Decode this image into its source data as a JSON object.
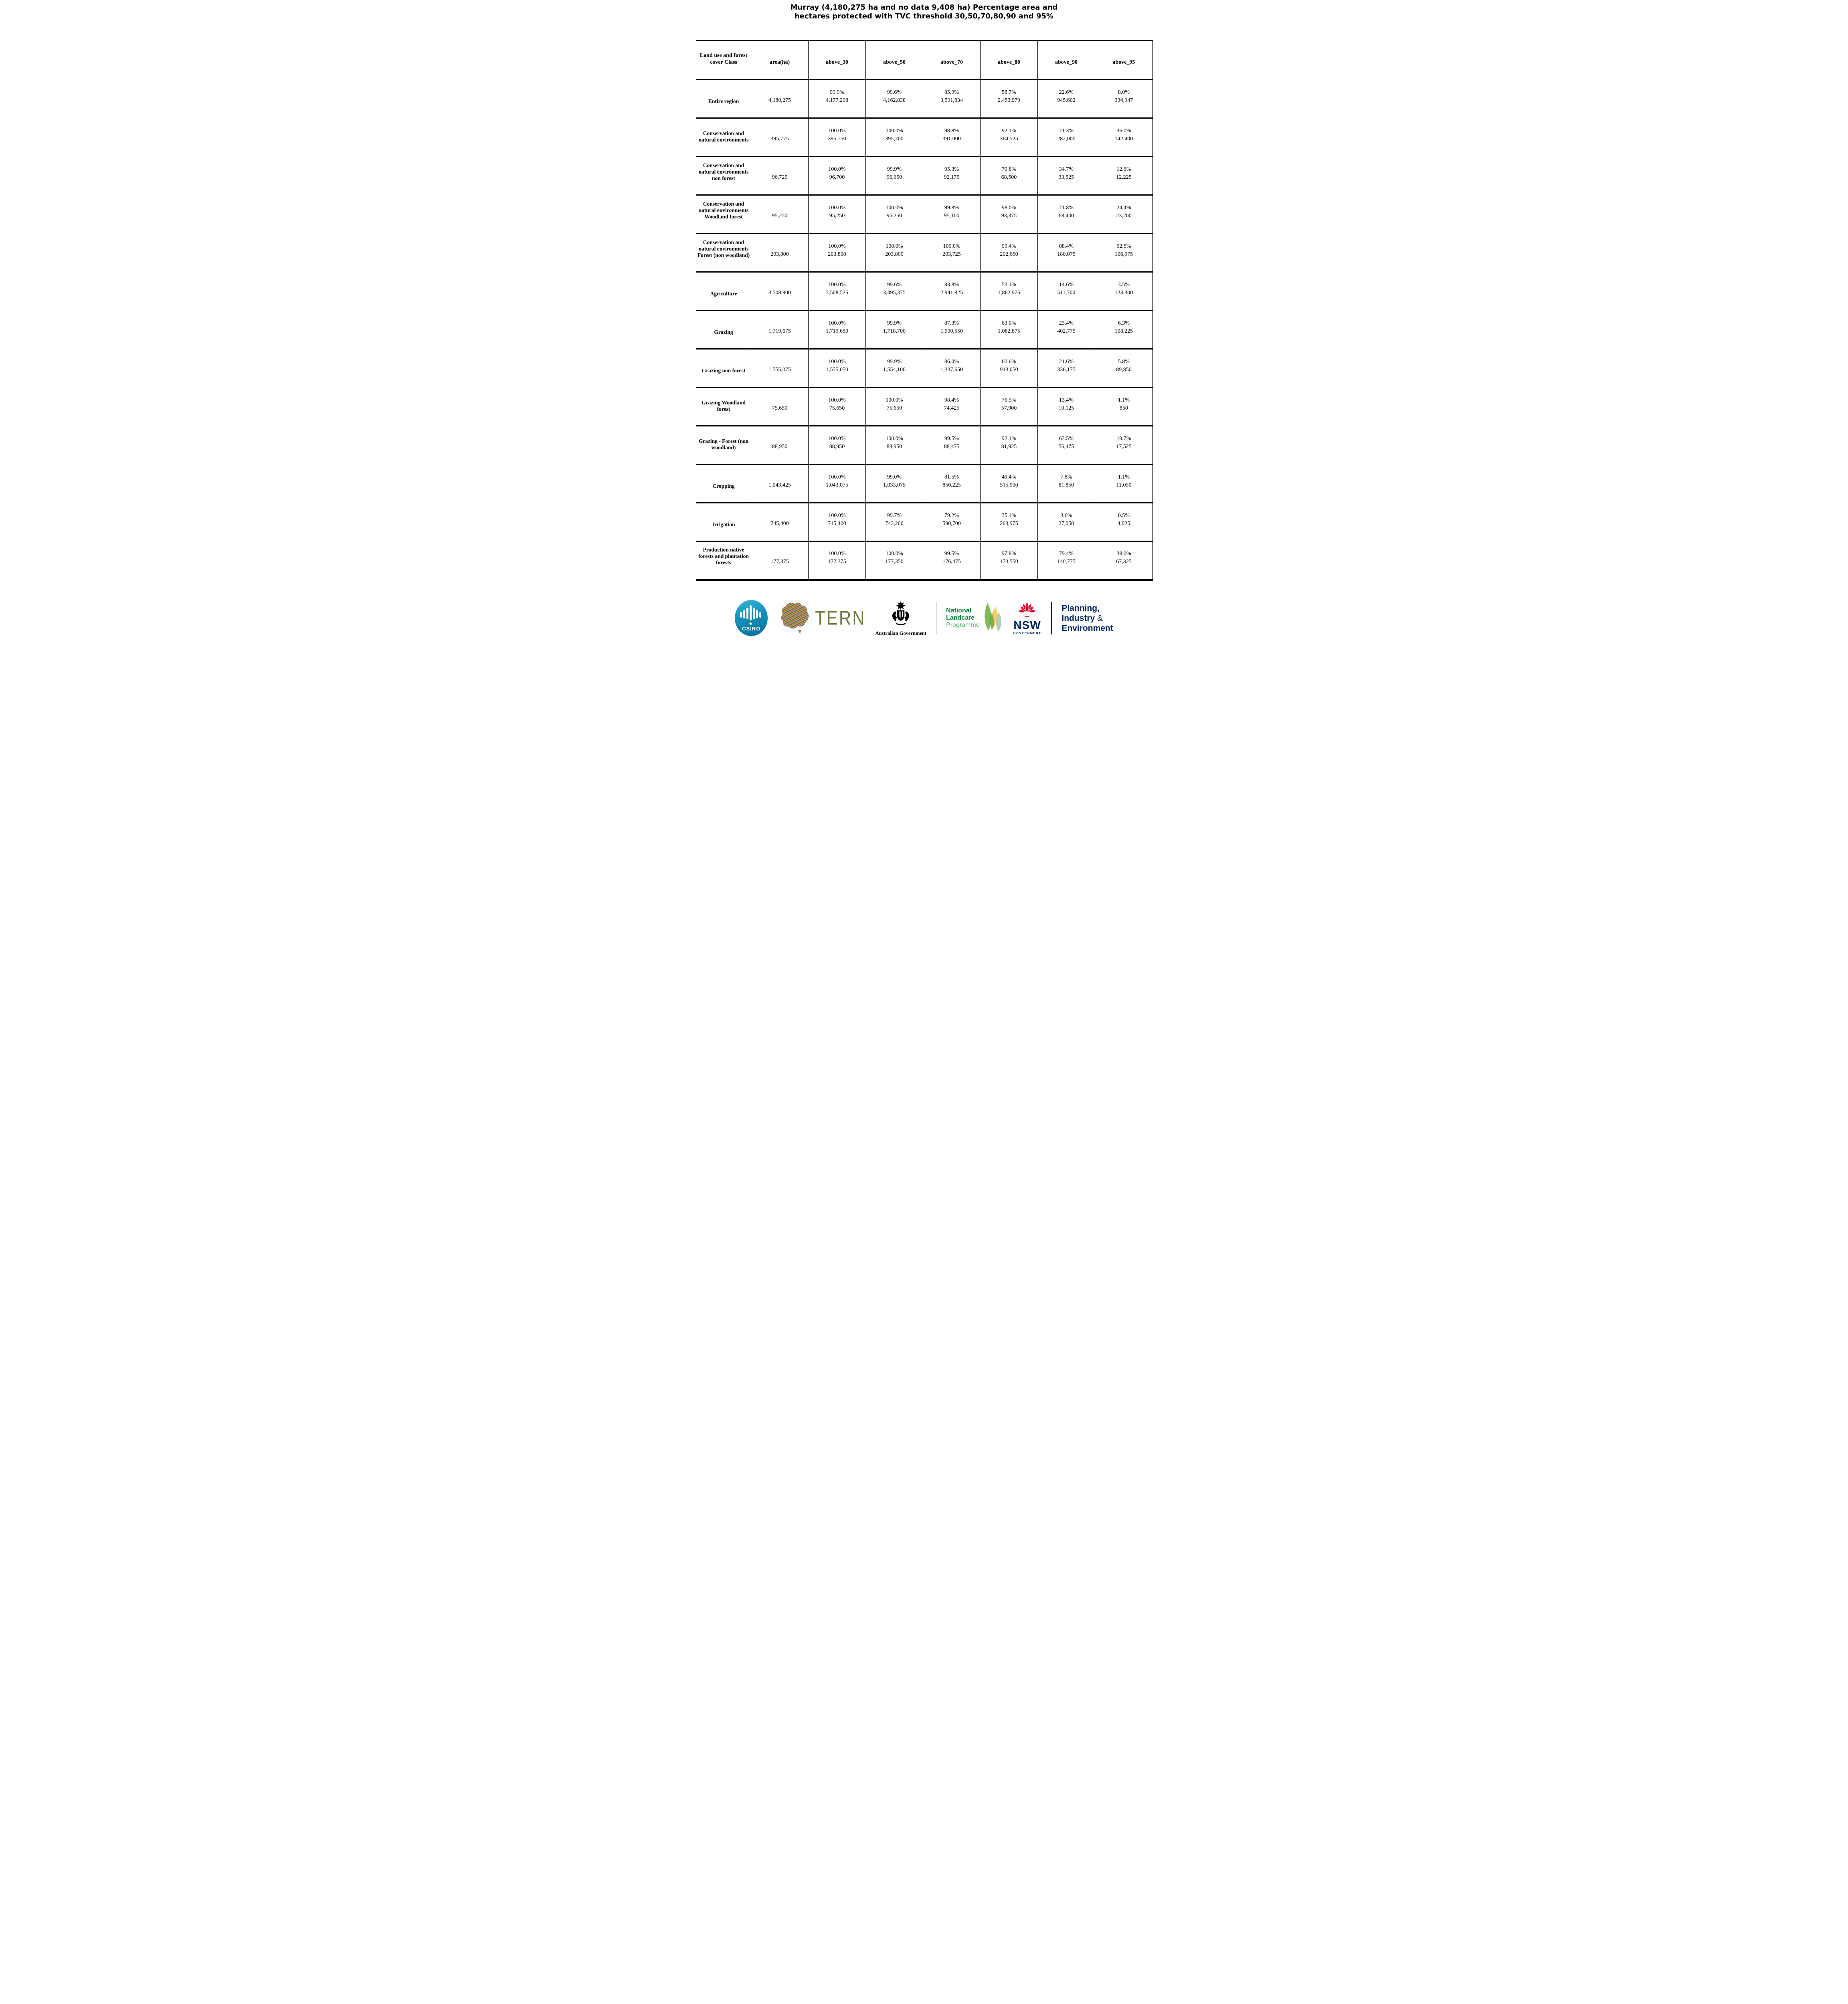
{
  "title": {
    "line1": "Murray (4,180,275 ha and no data 9,408 ha) Percentage area and",
    "line2": "hectares protected with TVC threshold 30,50,70,80,90 and 95%"
  },
  "table": {
    "header": [
      "Land use and forest cover Class",
      "area(ha)",
      "above_30",
      "above_50",
      "above_70",
      "above_80",
      "above_90",
      "above_95"
    ],
    "rows": [
      {
        "label": "Entire region",
        "area": "4,180,275",
        "values": [
          [
            "99.9%",
            "4,177,298"
          ],
          [
            "99.6%",
            "4,162,838"
          ],
          [
            "85.9%",
            "3,591,834"
          ],
          [
            "58.7%",
            "2,453,979"
          ],
          [
            "22.6%",
            "945,602"
          ],
          [
            "8.0%",
            "334,947"
          ]
        ]
      },
      {
        "label": "Conservation and natural environments",
        "area": "395,775",
        "values": [
          [
            "100.0%",
            "395,750"
          ],
          [
            "100.0%",
            "395,700"
          ],
          [
            "98.8%",
            "391,000"
          ],
          [
            "92.1%",
            "364,525"
          ],
          [
            "71.3%",
            "282,000"
          ],
          [
            "36.0%",
            "142,400"
          ]
        ]
      },
      {
        "label": "Conservation and natural environments non forest",
        "area": "96,725",
        "values": [
          [
            "100.0%",
            "96,700"
          ],
          [
            "99.9%",
            "96,650"
          ],
          [
            "95.3%",
            "92,175"
          ],
          [
            "70.8%",
            "68,500"
          ],
          [
            "34.7%",
            "33,525"
          ],
          [
            "12.6%",
            "12,225"
          ]
        ]
      },
      {
        "label": "Conservation and natural environments Woodland forest",
        "area": "95,250",
        "values": [
          [
            "100.0%",
            "95,250"
          ],
          [
            "100.0%",
            "95,250"
          ],
          [
            "99.8%",
            "95,100"
          ],
          [
            "98.0%",
            "93,375"
          ],
          [
            "71.8%",
            "68,400"
          ],
          [
            "24.4%",
            "23,200"
          ]
        ]
      },
      {
        "label": "Conservation and natural environments Forest (non woodland)",
        "area": "203,800",
        "values": [
          [
            "100.0%",
            "203,800"
          ],
          [
            "100.0%",
            "203,800"
          ],
          [
            "100.0%",
            "203,725"
          ],
          [
            "99.4%",
            "202,650"
          ],
          [
            "88.4%",
            "180,075"
          ],
          [
            "52.5%",
            "106,975"
          ]
        ]
      },
      {
        "label": "Agriculture",
        "area": "3,508,900",
        "values": [
          [
            "100.0%",
            "3,508,525"
          ],
          [
            "99.6%",
            "3,495,375"
          ],
          [
            "83.8%",
            "2,941,825"
          ],
          [
            "53.1%",
            "1,862,975"
          ],
          [
            "14.6%",
            "511,700"
          ],
          [
            "3.5%",
            "123,300"
          ]
        ]
      },
      {
        "label": "Grazing",
        "area": "1,719,675",
        "values": [
          [
            "100.0%",
            "1,719,650"
          ],
          [
            "99.9%",
            "1,718,700"
          ],
          [
            "87.3%",
            "1,500,550"
          ],
          [
            "63.0%",
            "1,082,875"
          ],
          [
            "23.4%",
            "402,775"
          ],
          [
            "6.3%",
            "108,225"
          ]
        ]
      },
      {
        "label": "Grazing non forest",
        "area": "1,555,075",
        "values": [
          [
            "100.0%",
            "1,555,050"
          ],
          [
            "99.9%",
            "1,554,100"
          ],
          [
            "86.0%",
            "1,337,650"
          ],
          [
            "60.6%",
            "943,050"
          ],
          [
            "21.6%",
            "336,175"
          ],
          [
            "5.8%",
            "89,850"
          ]
        ]
      },
      {
        "label": "Grazing Woodland forest",
        "area": "75,650",
        "values": [
          [
            "100.0%",
            "75,650"
          ],
          [
            "100.0%",
            "75,650"
          ],
          [
            "98.4%",
            "74,425"
          ],
          [
            "76.5%",
            "57,900"
          ],
          [
            "13.4%",
            "10,125"
          ],
          [
            "1.1%",
            "850"
          ]
        ]
      },
      {
        "label": "Grazing - Forest (non woodland)",
        "area": "88,950",
        "values": [
          [
            "100.0%",
            "88,950"
          ],
          [
            "100.0%",
            "88,950"
          ],
          [
            "99.5%",
            "88,475"
          ],
          [
            "92.1%",
            "81,925"
          ],
          [
            "63.5%",
            "56,475"
          ],
          [
            "19.7%",
            "17,525"
          ]
        ]
      },
      {
        "label": "Cropping",
        "area": "1,043,425",
        "values": [
          [
            "100.0%",
            "1,043,075"
          ],
          [
            "99.0%",
            "1,033,075"
          ],
          [
            "81.5%",
            "850,225"
          ],
          [
            "49.4%",
            "515,900"
          ],
          [
            "7.8%",
            "81,850"
          ],
          [
            "1.1%",
            "11,050"
          ]
        ]
      },
      {
        "label": "Irrigation",
        "area": "745,400",
        "values": [
          [
            "100.0%",
            "745,400"
          ],
          [
            "99.7%",
            "743,200"
          ],
          [
            "79.2%",
            "590,700"
          ],
          [
            "35.4%",
            "263,975"
          ],
          [
            "3.6%",
            "27,050"
          ],
          [
            "0.5%",
            "4,025"
          ]
        ]
      },
      {
        "label": "Production native forests and plantation forests",
        "area": "177,375",
        "values": [
          [
            "100.0%",
            "177,375"
          ],
          [
            "100.0%",
            "177,350"
          ],
          [
            "99.5%",
            "176,475"
          ],
          [
            "97.8%",
            "173,550"
          ],
          [
            "79.4%",
            "140,775"
          ],
          [
            "38.0%",
            "67,325"
          ]
        ]
      }
    ]
  },
  "footer": {
    "csiro": {
      "label": "CSIRO"
    },
    "tern": {
      "label": "TERN"
    },
    "aus_gov": {
      "label": "Australian Government"
    },
    "landcare": {
      "line1": "National",
      "line2": "Landcare",
      "line3": "Programme"
    },
    "nsw": {
      "label": "NSW",
      "sub": "GOVERNMENT"
    },
    "planning": {
      "line1": "Planning,",
      "line2a": "Industry",
      "amp": "&",
      "line3": "Environment"
    }
  },
  "colors": {
    "csiro_blue_top": "#35b4d6",
    "csiro_blue_bottom": "#0a6e97",
    "tern_olive": "#6c7b3f",
    "landcare_green_dark": "#00843d",
    "landcare_green_light": "#5eb46e",
    "nsw_red": "#e4002b",
    "nsw_navy": "#002664",
    "table_border": "#000000"
  }
}
